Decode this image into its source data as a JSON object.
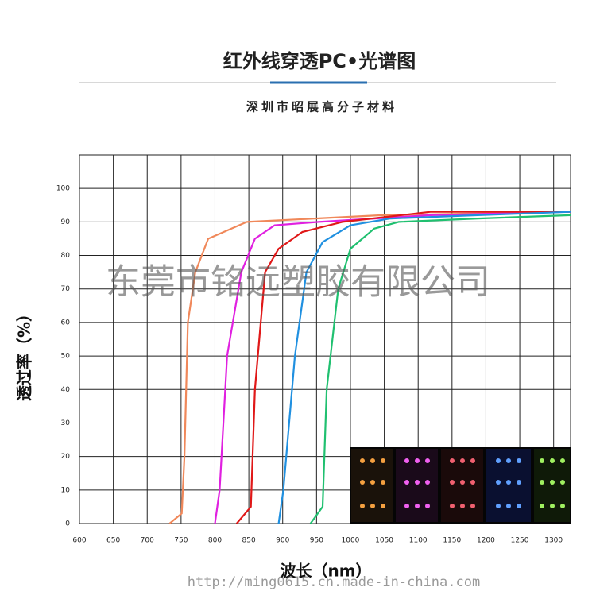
{
  "chart_data": {
    "type": "line",
    "title": "红外线穿透PC•光谱图",
    "subtitle": "深圳市昭展高分子材料",
    "x_label": "波长（nm）",
    "y_label": "透过率（%）",
    "watermark": "东莞市铭远塑胶有限公司",
    "watermark_url": "http://ming0615.cn.made-in-china.com",
    "xlim": [
      600,
      1325
    ],
    "xticks": [
      600,
      650,
      700,
      750,
      800,
      850,
      900,
      950,
      1000,
      1050,
      1100,
      1150,
      1200,
      1250,
      1300
    ],
    "ylim": [
      0,
      110
    ],
    "yticks": [
      0,
      10,
      20,
      30,
      40,
      50,
      60,
      70,
      80,
      90,
      100
    ],
    "grid": true,
    "series": [
      {
        "color": "#f0885a",
        "x": [
          733,
          751,
          755,
          760,
          771,
          790,
          847,
          1047,
          1325
        ],
        "values": [
          0,
          3,
          20,
          60,
          75,
          85,
          90,
          92,
          93
        ]
      },
      {
        "color": "#e020e0",
        "x": [
          800,
          807,
          818,
          839,
          859,
          888,
          953,
          1118,
          1325
        ],
        "values": [
          0,
          10,
          50,
          75,
          85,
          89,
          90,
          92,
          93
        ]
      },
      {
        "color": "#e01818",
        "x": [
          832,
          853,
          859,
          874,
          894,
          929,
          988,
          1118,
          1325
        ],
        "values": [
          0,
          5,
          40,
          75,
          82,
          87,
          90,
          93,
          93
        ]
      },
      {
        "color": "#2090e0",
        "x": [
          894,
          901,
          918,
          935,
          959,
          1000,
          1059,
          1188,
          1325
        ],
        "values": [
          0,
          10,
          50,
          75,
          84,
          89,
          91,
          92,
          93
        ]
      },
      {
        "color": "#20c070",
        "x": [
          941,
          959,
          965,
          982,
          1000,
          1035,
          1071,
          1188,
          1325
        ],
        "values": [
          0,
          5,
          40,
          70,
          82,
          88,
          90,
          91,
          92
        ]
      }
    ]
  }
}
